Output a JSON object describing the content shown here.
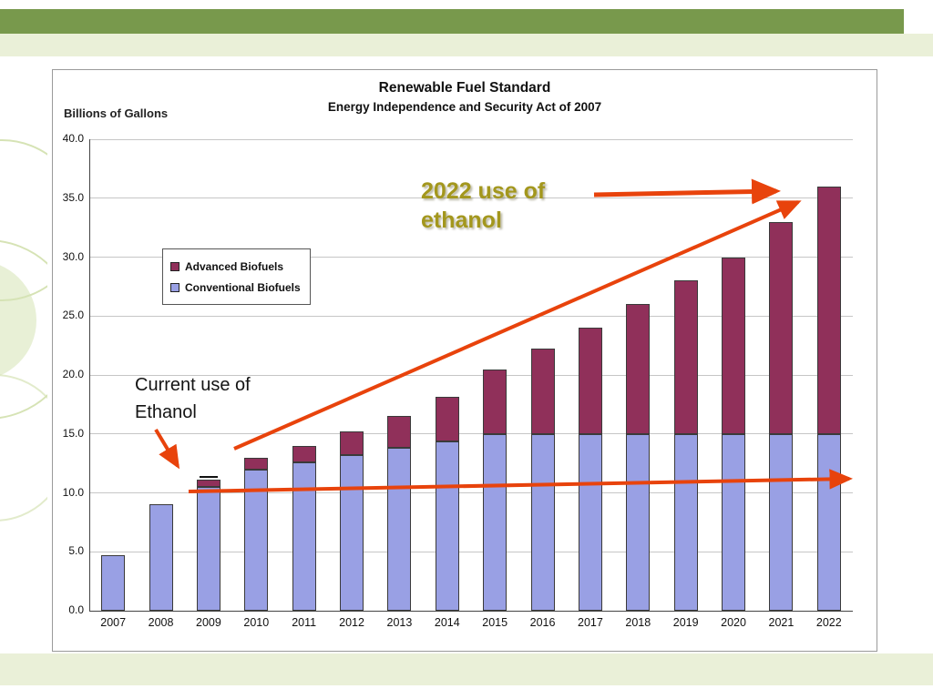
{
  "slide": {
    "top_bar_color": "#78994c",
    "band_color": "#eaf0d8",
    "decor_circle_color": "#d6e3b5",
    "arrow_color": "#e8430c"
  },
  "chart_data": {
    "type": "bar",
    "stacked": true,
    "title": "Renewable Fuel Standard",
    "subtitle": "Energy Independence and Security Act of 2007",
    "ylabel": "Billions of Gallons",
    "xlabel": "",
    "ylim": [
      0,
      40
    ],
    "ytick_step": 5,
    "grid": true,
    "legend_position": "upper-left-inside",
    "categories": [
      "2007",
      "2008",
      "2009",
      "2010",
      "2011",
      "2012",
      "2013",
      "2014",
      "2015",
      "2016",
      "2017",
      "2018",
      "2019",
      "2020",
      "2021",
      "2022"
    ],
    "series": [
      {
        "name": "Conventional Biofuels",
        "color": "#99a0e4",
        "values": [
          4.7,
          9.0,
          10.5,
          12.0,
          12.6,
          13.2,
          13.8,
          14.4,
          15.0,
          15.0,
          15.0,
          15.0,
          15.0,
          15.0,
          15.0,
          15.0
        ]
      },
      {
        "name": "Advanced Biofuels",
        "color": "#90305a",
        "values": [
          0,
          0,
          0.6,
          0.95,
          1.35,
          2.0,
          2.75,
          3.75,
          5.5,
          7.25,
          9.0,
          11.0,
          13.0,
          15.0,
          18.0,
          21.0
        ]
      }
    ],
    "totals": [
      4.7,
      9.0,
      11.1,
      12.95,
      13.95,
      15.2,
      16.55,
      18.15,
      20.5,
      22.25,
      24.0,
      26.0,
      28.0,
      30.0,
      33.0,
      36.0
    ],
    "cap_marker": {
      "category": "2009",
      "value": 11.4
    }
  },
  "annotations": {
    "gold_label": "2022 use of\nethanol",
    "gold_color": "#a3971d",
    "current_label": "Current use of\nEthanol"
  }
}
